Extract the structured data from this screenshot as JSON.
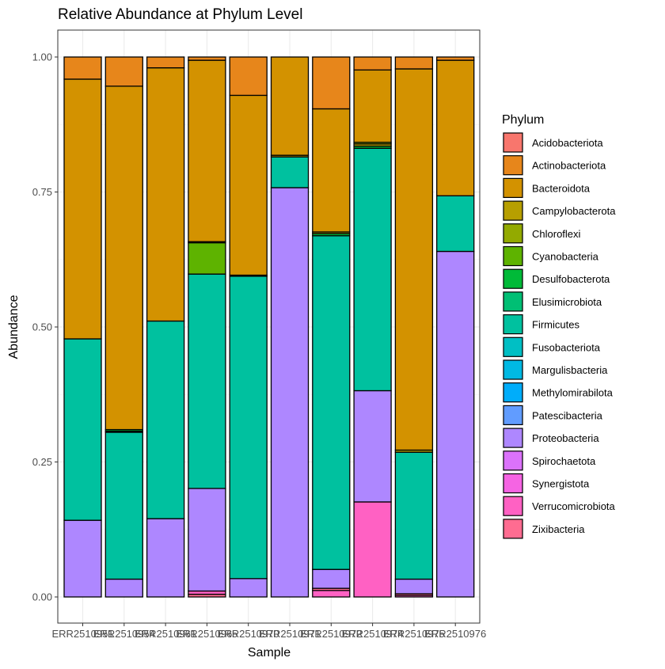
{
  "chart_data": {
    "type": "bar",
    "stacked": true,
    "title": "Relative Abundance at Phylum Level",
    "xlabel": "Sample",
    "ylabel": "Abundance",
    "ylim": [
      0,
      1
    ],
    "yticks": [
      "0.00",
      "0.25",
      "0.50",
      "0.75",
      "1.00"
    ],
    "grid": true,
    "legend_title": "Phylum",
    "legend_position": "right",
    "categories": [
      "ERR2510951",
      "ERR2510954",
      "ERR2510961",
      "ERR2510965",
      "ERR2510970",
      "ERR2510971",
      "ERR2510972",
      "ERR2510974",
      "ERR2510975",
      "ERR2510976"
    ],
    "phyla": [
      {
        "name": "Acidobacteriota",
        "color": "#F8766D"
      },
      {
        "name": "Actinobacteriota",
        "color": "#E7861B"
      },
      {
        "name": "Bacteroidota",
        "color": "#D39200"
      },
      {
        "name": "Campylobacterota",
        "color": "#B79F00"
      },
      {
        "name": "Chloroflexi",
        "color": "#93AA00"
      },
      {
        "name": "Cyanobacteria",
        "color": "#5EB300"
      },
      {
        "name": "Desulfobacterota",
        "color": "#00BA38"
      },
      {
        "name": "Elusimicrobiota",
        "color": "#00BF74"
      },
      {
        "name": "Firmicutes",
        "color": "#00C19F"
      },
      {
        "name": "Fusobacteriota",
        "color": "#00BFC4"
      },
      {
        "name": "Margulisbacteria",
        "color": "#00B9E3"
      },
      {
        "name": "Methylomirabilota",
        "color": "#00ADFA"
      },
      {
        "name": "Patescibacteria",
        "color": "#619CFF"
      },
      {
        "name": "Proteobacteria",
        "color": "#AE87FF"
      },
      {
        "name": "Spirochaetota",
        "color": "#DB72FB"
      },
      {
        "name": "Synergistota",
        "color": "#F564E3"
      },
      {
        "name": "Verrucomicrobiota",
        "color": "#FF61C3"
      },
      {
        "name": "Zixibacteria",
        "color": "#FF6C91"
      }
    ],
    "samples": [
      {
        "segments": [
          [
            "Proteobacteria",
            0.142
          ],
          [
            "Firmicutes",
            0.336
          ],
          [
            "Bacteroidota",
            0.481
          ],
          [
            "Actinobacteriota",
            0.041
          ]
        ]
      },
      {
        "segments": [
          [
            "Proteobacteria",
            0.033
          ],
          [
            "Firmicutes",
            0.272
          ],
          [
            "Fusobacteriota",
            0.002
          ],
          [
            "Desulfobacterota",
            0.003
          ],
          [
            "Bacteroidota",
            0.636
          ],
          [
            "Actinobacteriota",
            0.054
          ]
        ]
      },
      {
        "segments": [
          [
            "Proteobacteria",
            0.145
          ],
          [
            "Firmicutes",
            0.366
          ],
          [
            "Bacteroidota",
            0.469
          ],
          [
            "Actinobacteriota",
            0.02
          ]
        ]
      },
      {
        "segments": [
          [
            "Zixibacteria",
            0.005
          ],
          [
            "Verrucomicrobiota",
            0.006
          ],
          [
            "Proteobacteria",
            0.19
          ],
          [
            "Firmicutes",
            0.397
          ],
          [
            "Cyanobacteria",
            0.058
          ],
          [
            "Campylobacterota",
            0.002
          ],
          [
            "Bacteroidota",
            0.336
          ],
          [
            "Actinobacteriota",
            0.006
          ]
        ]
      },
      {
        "segments": [
          [
            "Proteobacteria",
            0.034
          ],
          [
            "Firmicutes",
            0.56
          ],
          [
            "Campylobacterota",
            0.002
          ],
          [
            "Bacteroidota",
            0.333
          ],
          [
            "Actinobacteriota",
            0.071
          ]
        ]
      },
      {
        "segments": [
          [
            "Proteobacteria",
            0.758
          ],
          [
            "Firmicutes",
            0.057
          ],
          [
            "Campylobacterota",
            0.003
          ],
          [
            "Bacteroidota",
            0.182
          ]
        ]
      },
      {
        "segments": [
          [
            "Verrucomicrobiota",
            0.012
          ],
          [
            "Zixibacteria",
            0.004
          ],
          [
            "Proteobacteria",
            0.035
          ],
          [
            "Firmicutes",
            0.618
          ],
          [
            "Desulfobacterota",
            0.004
          ],
          [
            "Campylobacterota",
            0.003
          ],
          [
            "Bacteroidota",
            0.228
          ],
          [
            "Actinobacteriota",
            0.096
          ]
        ]
      },
      {
        "segments": [
          [
            "Verrucomicrobiota",
            0.176
          ],
          [
            "Proteobacteria",
            0.206
          ],
          [
            "Firmicutes",
            0.449
          ],
          [
            "Desulfobacterota",
            0.004
          ],
          [
            "Campylobacterota",
            0.004
          ],
          [
            "Chloroflexi",
            0.003
          ],
          [
            "Bacteroidota",
            0.134
          ],
          [
            "Actinobacteriota",
            0.024
          ]
        ]
      },
      {
        "segments": [
          [
            "Verrucomicrobiota",
            0.003
          ],
          [
            "Zixibacteria",
            0.003
          ],
          [
            "Proteobacteria",
            0.027
          ],
          [
            "Firmicutes",
            0.235
          ],
          [
            "Campylobacterota",
            0.004
          ],
          [
            "Bacteroidota",
            0.706
          ],
          [
            "Actinobacteriota",
            0.022
          ]
        ]
      },
      {
        "segments": [
          [
            "Proteobacteria",
            0.64
          ],
          [
            "Firmicutes",
            0.103
          ],
          [
            "Bacteroidota",
            0.251
          ],
          [
            "Actinobacteriota",
            0.006
          ]
        ]
      }
    ]
  }
}
